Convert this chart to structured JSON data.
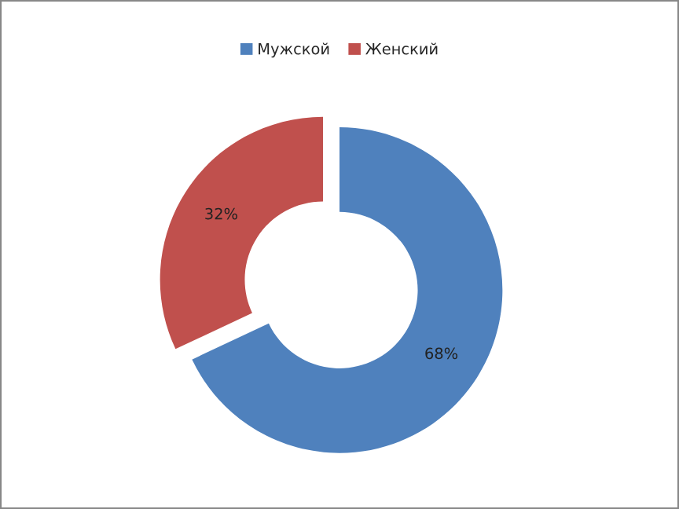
{
  "chart_data": {
    "type": "donut",
    "categories": [
      "Мужской",
      "Женский"
    ],
    "values": [
      68,
      32
    ],
    "colors": [
      "#4f81bd",
      "#c0504d"
    ],
    "value_labels": [
      "68%",
      "32%"
    ],
    "legend": "top"
  }
}
